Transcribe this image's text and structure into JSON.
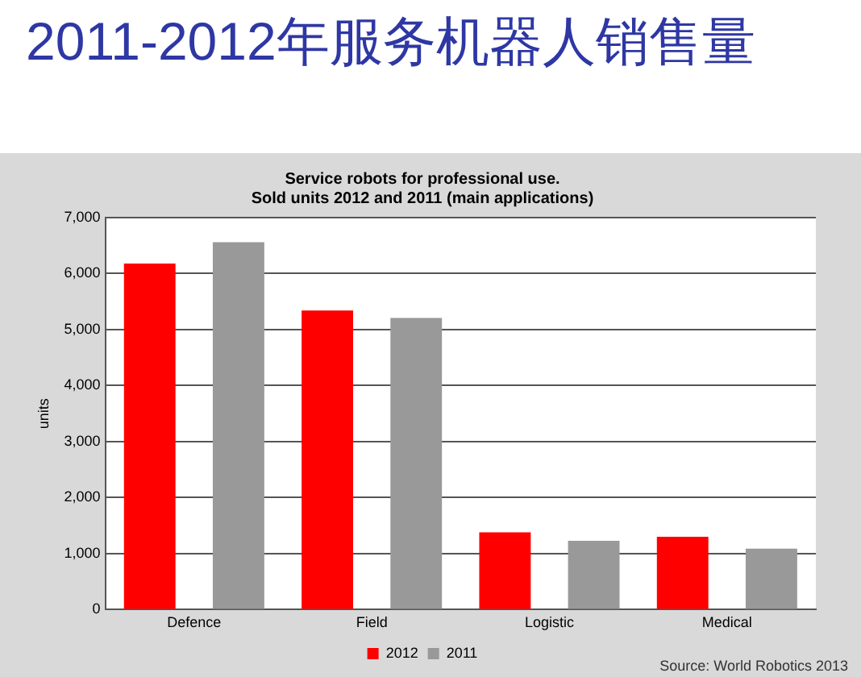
{
  "chart_data": {
    "type": "bar",
    "title": "2011-2012年服务机器人销售量",
    "subtitle": "Service robots for professional use.\nSold units 2012 and 2011 (main applications)",
    "ylabel": "units",
    "categories": [
      "Defence",
      "Field",
      "Logistic",
      "Medical"
    ],
    "series": [
      {
        "name": "2012",
        "color": "#ff0000",
        "values": [
          6180,
          5340,
          1380,
          1300
        ]
      },
      {
        "name": "2011",
        "color": "#999999",
        "values": [
          6560,
          5210,
          1230,
          1090
        ]
      }
    ],
    "ylim": [
      0,
      7000
    ],
    "yticks": [
      {
        "value": 0,
        "label": "0"
      },
      {
        "value": 1000,
        "label": "1,000"
      },
      {
        "value": 2000,
        "label": "2,000"
      },
      {
        "value": 3000,
        "label": "3,000"
      },
      {
        "value": 4000,
        "label": "4,000"
      },
      {
        "value": 5000,
        "label": "5,000"
      },
      {
        "value": 6000,
        "label": "6,000"
      },
      {
        "value": 7000,
        "label": "7,000"
      }
    ],
    "grid": "y",
    "legend": "bottom",
    "annotations": [
      "Source: World Robotics 2013"
    ]
  }
}
